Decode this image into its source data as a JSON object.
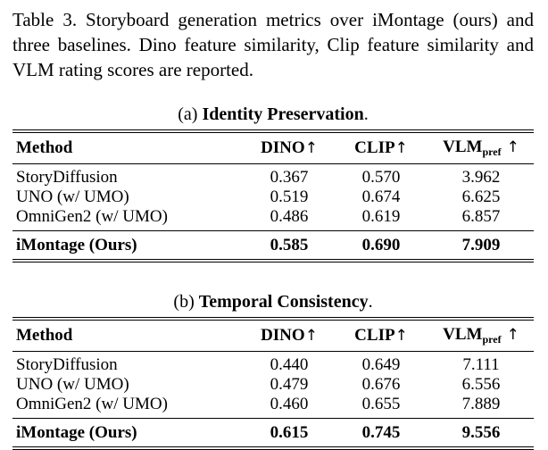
{
  "caption": {
    "lines": [
      "Table 3.  Storyboard generation metrics over iMontage (ours) and",
      "three baselines. Dino feature similarity, Clip feature similarity and",
      "VLM rating scores are reported."
    ]
  },
  "tables": [
    {
      "label_prefix": "(a) ",
      "label_title": "Identity Preservation",
      "label_suffix": ".",
      "headers": {
        "method": "Method",
        "dino": "DINO",
        "clip": "CLIP",
        "vlm_base": "VLM",
        "vlm_sub": "pref",
        "arrow": "↑"
      },
      "rows": [
        {
          "method": "StoryDiffusion",
          "dino": "0.367",
          "clip": "0.570",
          "vlm": "3.962"
        },
        {
          "method": "UNO (w/ UMO)",
          "dino": "0.519",
          "clip": "0.674",
          "vlm": "6.625"
        },
        {
          "method": "OmniGen2 (w/ UMO)",
          "dino": "0.486",
          "clip": "0.619",
          "vlm": "6.857"
        }
      ],
      "highlight_row": {
        "method": "iMontage (Ours)",
        "dino": "0.585",
        "clip": "0.690",
        "vlm": "7.909"
      }
    },
    {
      "label_prefix": "(b) ",
      "label_title": "Temporal Consistency",
      "label_suffix": ".",
      "headers": {
        "method": "Method",
        "dino": "DINO",
        "clip": "CLIP",
        "vlm_base": "VLM",
        "vlm_sub": "pref",
        "arrow": "↑"
      },
      "rows": [
        {
          "method": "StoryDiffusion",
          "dino": "0.440",
          "clip": "0.649",
          "vlm": "7.111"
        },
        {
          "method": "UNO (w/ UMO)",
          "dino": "0.479",
          "clip": "0.676",
          "vlm": "6.556"
        },
        {
          "method": "OmniGen2 (w/ UMO)",
          "dino": "0.460",
          "clip": "0.655",
          "vlm": "7.889"
        }
      ],
      "highlight_row": {
        "method": "iMontage (Ours)",
        "dino": "0.615",
        "clip": "0.745",
        "vlm": "9.556"
      }
    }
  ],
  "colors": {
    "text": "#000000",
    "background": "#ffffff"
  }
}
